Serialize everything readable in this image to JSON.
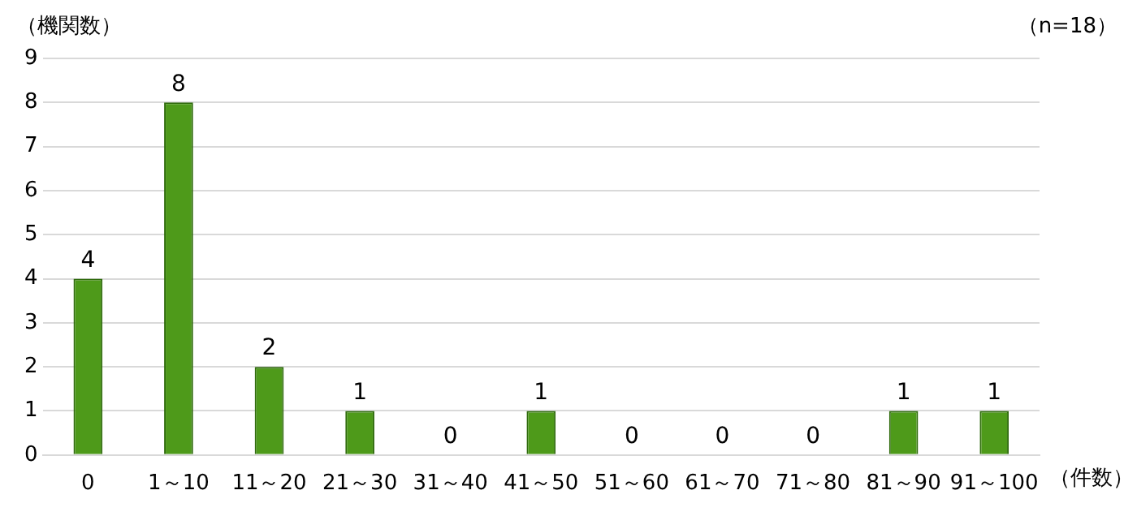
{
  "chart_data": {
    "type": "bar",
    "ylabel": "（機関数）",
    "xlabel": "（件数）",
    "annotations": [
      "（n=18）"
    ],
    "categories": [
      "0",
      "1～10",
      "11～20",
      "21～30",
      "31～40",
      "41～50",
      "51～60",
      "61～70",
      "71～80",
      "81～90",
      "91～100"
    ],
    "values": [
      4,
      8,
      2,
      1,
      0,
      1,
      0,
      0,
      0,
      1,
      1
    ],
    "color": "#4e9a1a",
    "ylim": [
      0,
      9
    ],
    "yticks": [
      0,
      1,
      2,
      3,
      4,
      5,
      6,
      7,
      8,
      9
    ],
    "grid": "y",
    "data_labels": true
  }
}
